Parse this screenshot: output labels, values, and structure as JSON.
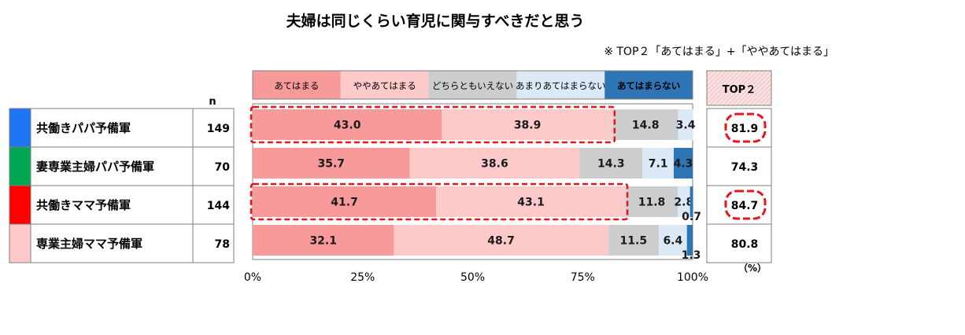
{
  "chart_data": {
    "type": "bar",
    "orientation": "horizontal",
    "stacked": true,
    "title": "夫婦は同じくらい育児に関与すべきだと思う",
    "note": "※ TOP２「あてはまる」+「ややあてはまる」",
    "n_header": "n",
    "top2_header": "TOP２",
    "percent_unit": "（%）",
    "xlim": [
      0,
      100
    ],
    "x_ticks": [
      "0%",
      "25%",
      "50%",
      "75%",
      "100%"
    ],
    "grid": false,
    "legend_position": "top",
    "categories": [
      "共働きパパ予備軍",
      "妻専業主婦パパ予備軍",
      "共働きママ予備軍",
      "専業主婦ママ予備軍"
    ],
    "category_colors": [
      "#1e74f2",
      "#00a651",
      "#ff0000",
      "#ffc9c9"
    ],
    "n": [
      "149",
      "70",
      "144",
      "78"
    ],
    "top2": [
      "81.9",
      "74.3",
      "84.7",
      "80.8"
    ],
    "top2_highlight": [
      true,
      false,
      true,
      false
    ],
    "series": [
      {
        "name": "あてはまる",
        "color": "#f99a9a",
        "values": [
          43.0,
          35.7,
          41.7,
          32.1
        ],
        "labels": [
          "43.0",
          "35.7",
          "41.7",
          "32.1"
        ]
      },
      {
        "name": "ややあてはまる",
        "color": "#fdcaca",
        "values": [
          38.9,
          38.6,
          43.1,
          48.7
        ],
        "labels": [
          "38.9",
          "38.6",
          "43.1",
          "48.7"
        ]
      },
      {
        "name": "どちらともいえない",
        "color": "#cdcdcd",
        "values": [
          14.8,
          14.3,
          11.8,
          11.5
        ],
        "labels": [
          "14.8",
          "14.3",
          "11.8",
          "11.5"
        ]
      },
      {
        "name": "あまりあてはまらない",
        "color": "#dce9f6",
        "values": [
          3.4,
          7.1,
          2.8,
          6.4
        ],
        "labels": [
          "3.4",
          "7.1",
          "2.8",
          "6.4"
        ]
      },
      {
        "name": "あてはまらない",
        "color": "#2e75b6",
        "values": [
          0.0,
          4.3,
          0.7,
          1.3
        ],
        "labels": [
          "",
          "4.3",
          "0.7",
          "1.3"
        ]
      }
    ],
    "highlight_color": "#e8141c"
  }
}
